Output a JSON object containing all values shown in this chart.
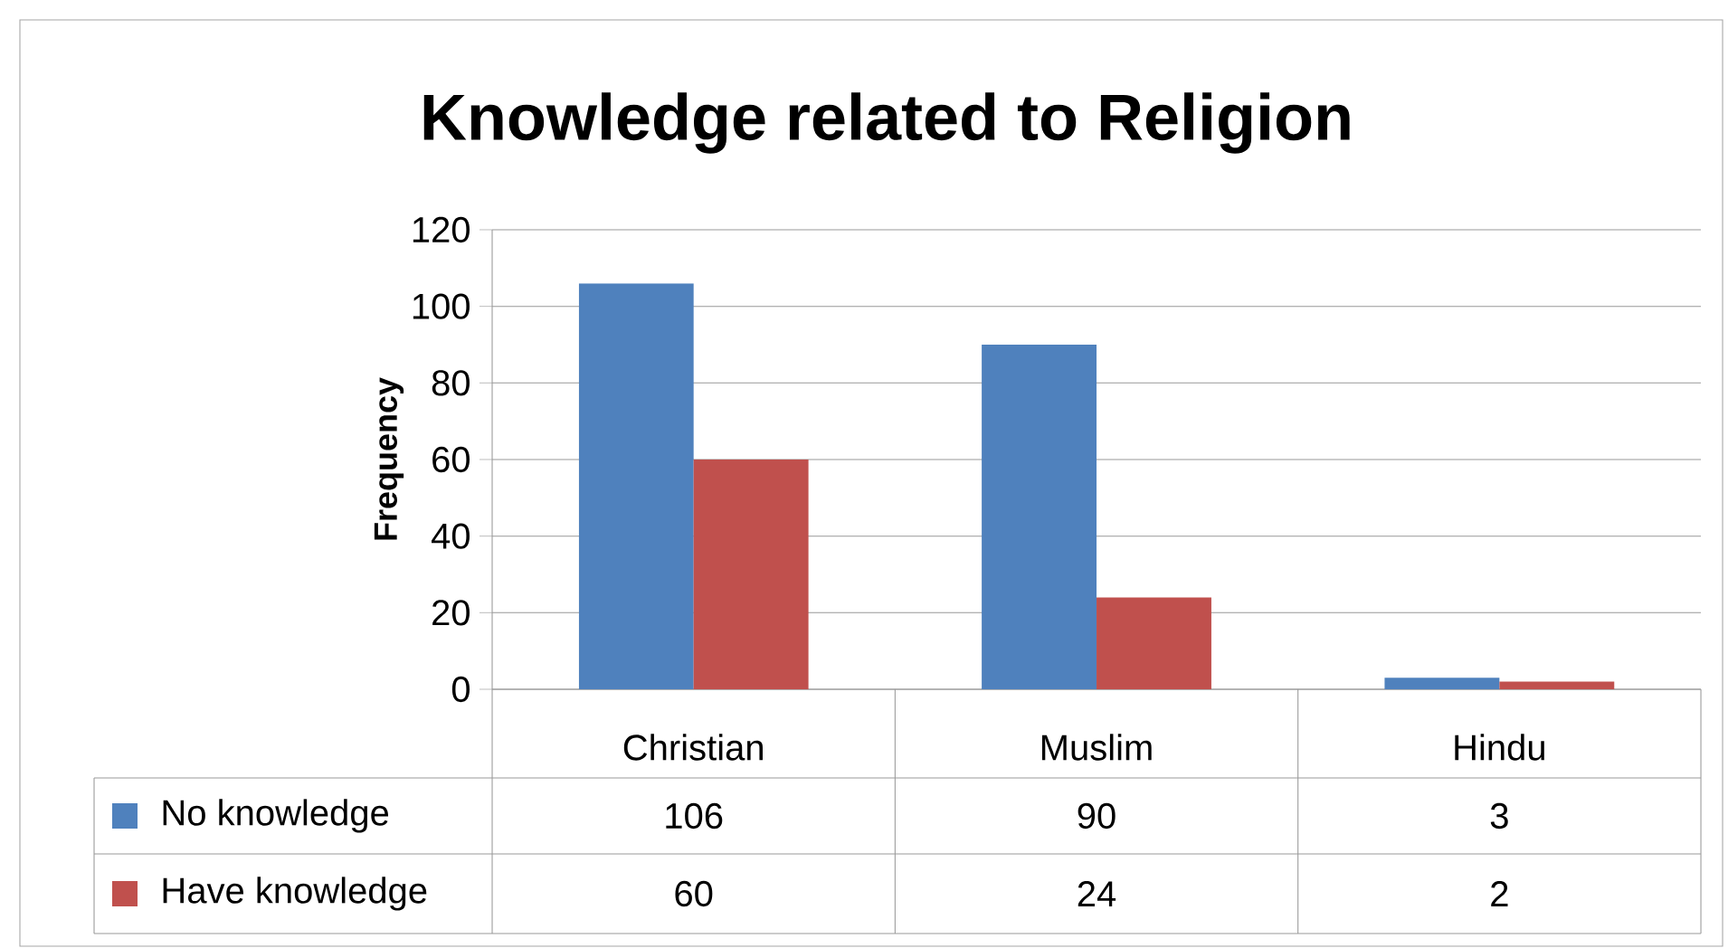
{
  "chart_data": {
    "type": "bar",
    "title": "Knowledge related to Religion",
    "ylabel": "Frequency",
    "categories": [
      "Christian",
      "Muslim",
      "Hindu"
    ],
    "series": [
      {
        "name": "No knowledge",
        "color": "#4f81bd",
        "values": [
          106,
          90,
          3
        ]
      },
      {
        "name": "Have knowledge",
        "color": "#c0504d",
        "values": [
          60,
          24,
          2
        ]
      }
    ],
    "ylim": [
      0,
      120
    ],
    "yticks": [
      0,
      20,
      40,
      60,
      80,
      100,
      120
    ],
    "grid": "y",
    "legend": "bottom left",
    "data_labels": true
  }
}
